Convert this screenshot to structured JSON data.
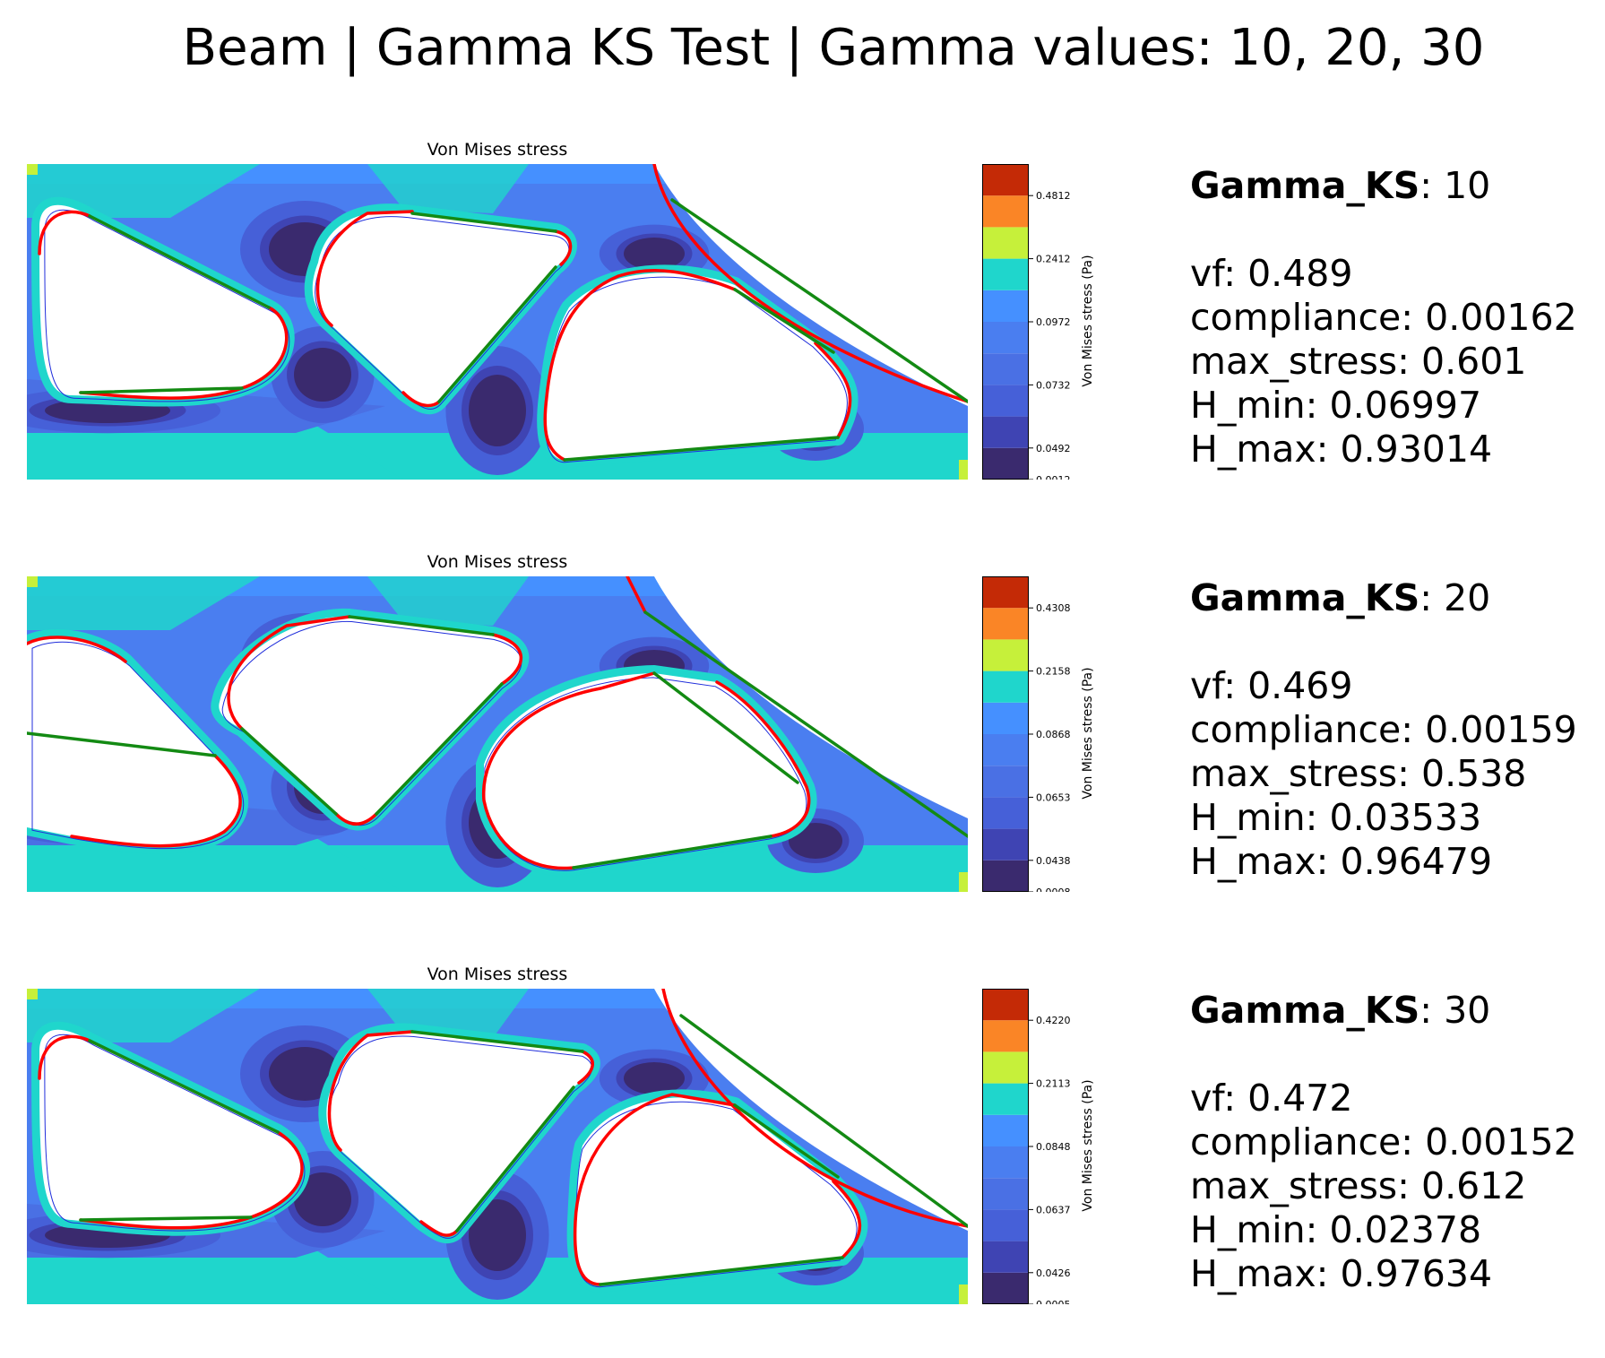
{
  "title": "Beam | Gamma KS Test | Gamma values: 10, 20, 30",
  "colors": {
    "colormap": [
      "#3a2a6e",
      "#3f44b3",
      "#4660d8",
      "#4a70e4",
      "#4a7ef0",
      "#4590ff",
      "#1fd6cc",
      "#c6f03a",
      "#fa8526",
      "#c42a06"
    ],
    "boundary_red": "#ff0000",
    "boundary_green": "#138a13",
    "guide_blue": "#1f2ddb"
  },
  "chart_data": [
    {
      "type": "heatmap",
      "title": "Von Mises stress",
      "colorbar_label": "Von Mises stress (Pa)",
      "colorbar_ticks": [
        "0.4812",
        "0.2412",
        "0.0972",
        "0.0732",
        "0.0492",
        "0.0012"
      ],
      "stats": {
        "gamma_label": "Gamma_KS",
        "gamma_value": "10",
        "vf": "0.489",
        "compliance": "0.00162",
        "max_stress": "0.601",
        "H_min": "0.06997",
        "H_max": "0.93014"
      }
    },
    {
      "type": "heatmap",
      "title": "Von Mises stress",
      "colorbar_label": "Von Mises stress (Pa)",
      "colorbar_ticks": [
        "0.4308",
        "0.2158",
        "0.0868",
        "0.0653",
        "0.0438",
        "0.0008"
      ],
      "stats": {
        "gamma_label": "Gamma_KS",
        "gamma_value": "20",
        "vf": "0.469",
        "compliance": "0.00159",
        "max_stress": "0.538",
        "H_min": "0.03533",
        "H_max": "0.96479"
      }
    },
    {
      "type": "heatmap",
      "title": "Von Mises stress",
      "colorbar_label": "Von Mises stress (Pa)",
      "colorbar_ticks": [
        "0.4220",
        "0.2113",
        "0.0848",
        "0.0637",
        "0.0426",
        "0.0005"
      ],
      "stats": {
        "gamma_label": "Gamma_KS",
        "gamma_value": "30",
        "vf": "0.472",
        "compliance": "0.00152",
        "max_stress": "0.612",
        "H_min": "0.02378",
        "H_max": "0.97634"
      }
    }
  ]
}
